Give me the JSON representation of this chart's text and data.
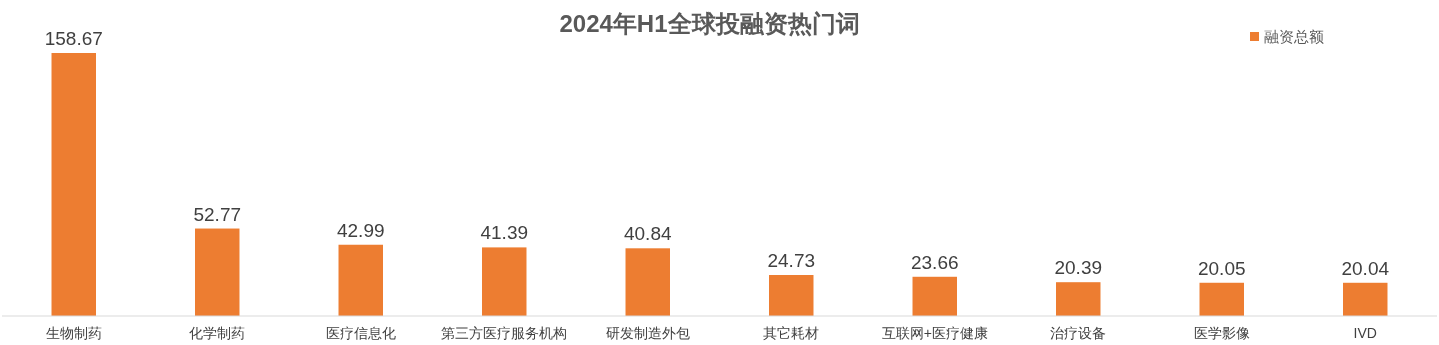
{
  "chart_data": {
    "type": "bar",
    "title": "2024年H1全球投融资热门词",
    "categories": [
      "生物制药",
      "化学制药",
      "医疗信息化",
      "第三方医疗服务机构",
      "研发制造外包",
      "其它耗材",
      "互联网+医疗健康",
      "治疗设备",
      "医学影像",
      "IVD"
    ],
    "series": [
      {
        "name": "融资总额",
        "color": "#ed7d31",
        "values": [
          158.67,
          52.77,
          42.99,
          41.39,
          40.84,
          24.73,
          23.66,
          20.39,
          20.05,
          20.04
        ]
      }
    ],
    "data_labels": true,
    "legend": "top right"
  }
}
